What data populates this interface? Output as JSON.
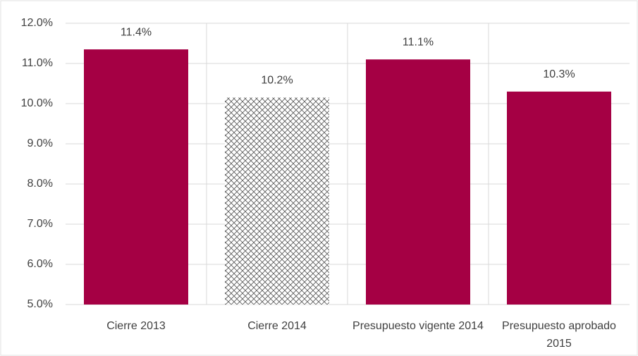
{
  "chart_data": {
    "type": "bar",
    "categories": [
      "Cierre 2013",
      "Cierre 2014",
      "Presupuesto vigente 2014",
      "Presupuesto aprobado 2015"
    ],
    "values": [
      11.35,
      10.15,
      11.1,
      10.3
    ],
    "value_labels": [
      "11.4%",
      "10.2%",
      "11.1%",
      "10.3%"
    ],
    "color": "#a50044",
    "hatch": [
      false,
      true,
      false,
      false
    ],
    "ylim": [
      5,
      12
    ],
    "yticks": [
      {
        "value": 5,
        "label": "5.0%"
      },
      {
        "value": 6,
        "label": "6.0%"
      },
      {
        "value": 7,
        "label": "7.0%"
      },
      {
        "value": 8,
        "label": "8.0%"
      },
      {
        "value": 9,
        "label": "9.0%"
      },
      {
        "value": 10,
        "label": "10.0%"
      },
      {
        "value": 11,
        "label": "11.0%"
      },
      {
        "value": 12,
        "label": "12.0%"
      }
    ],
    "grid": true
  }
}
